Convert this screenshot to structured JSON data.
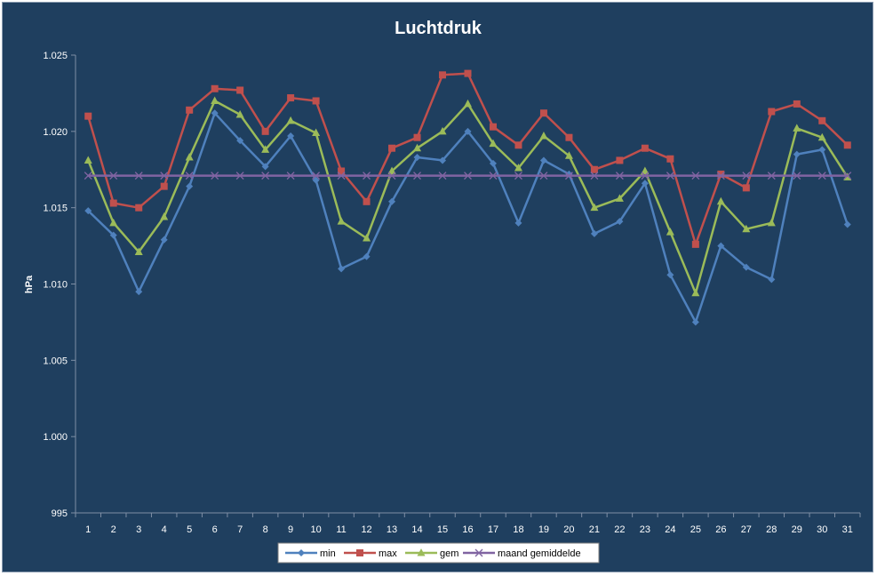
{
  "chart_data": {
    "type": "line",
    "title": "Luchtdruk",
    "xlabel": "",
    "ylabel": "hPa",
    "ylim": [
      995,
      1025
    ],
    "y_ticks": [
      "995",
      "1.000",
      "1.005",
      "1.010",
      "1.015",
      "1.020",
      "1.025"
    ],
    "y_tick_values": [
      995,
      1000,
      1005,
      1010,
      1015,
      1020,
      1025
    ],
    "categories": [
      "1",
      "2",
      "3",
      "4",
      "5",
      "6",
      "7",
      "8",
      "9",
      "10",
      "11",
      "12",
      "13",
      "14",
      "15",
      "16",
      "17",
      "18",
      "19",
      "20",
      "21",
      "22",
      "23",
      "24",
      "25",
      "26",
      "27",
      "28",
      "29",
      "30",
      "31"
    ],
    "grid": false,
    "legend_position": "bottom",
    "background": "#1f3f5f",
    "series": [
      {
        "name": "min",
        "color": "#4f81bd",
        "marker": "diamond",
        "values": [
          1014.8,
          1013.2,
          1009.5,
          1012.9,
          1016.4,
          1021.2,
          1019.4,
          1017.7,
          1019.7,
          1016.8,
          1011.0,
          1011.8,
          1015.4,
          1018.3,
          1018.1,
          1020.0,
          1017.9,
          1014.0,
          1018.1,
          1017.2,
          1013.3,
          1014.1,
          1016.6,
          1010.6,
          1007.5,
          1012.5,
          1011.1,
          1010.3,
          1018.5,
          1018.8,
          1013.9
        ]
      },
      {
        "name": "max",
        "color": "#c0504d",
        "marker": "square",
        "values": [
          1021.0,
          1015.3,
          1015.0,
          1016.4,
          1021.4,
          1022.8,
          1022.7,
          1020.0,
          1022.2,
          1022.0,
          1017.4,
          1015.4,
          1018.9,
          1019.6,
          1023.7,
          1023.8,
          1020.3,
          1019.1,
          1021.2,
          1019.6,
          1017.5,
          1018.1,
          1018.9,
          1018.2,
          1012.6,
          1017.2,
          1016.3,
          1021.3,
          1021.8,
          1020.7,
          1019.1
        ]
      },
      {
        "name": "gem",
        "color": "#9bbb59",
        "marker": "triangle",
        "values": [
          1018.1,
          1014.0,
          1012.1,
          1014.4,
          1018.3,
          1022.0,
          1021.1,
          1018.8,
          1020.7,
          1019.9,
          1014.1,
          1013.0,
          1017.4,
          1018.9,
          1020.0,
          1021.8,
          1019.2,
          1017.6,
          1019.7,
          1018.4,
          1015.0,
          1015.6,
          1017.4,
          1013.4,
          1009.4,
          1015.4,
          1013.6,
          1014.0,
          1020.2,
          1019.6,
          1017.0
        ]
      },
      {
        "name": "maand gemiddelde",
        "color": "#8064a2",
        "marker": "x",
        "values": [
          1017.1,
          1017.1,
          1017.1,
          1017.1,
          1017.1,
          1017.1,
          1017.1,
          1017.1,
          1017.1,
          1017.1,
          1017.1,
          1017.1,
          1017.1,
          1017.1,
          1017.1,
          1017.1,
          1017.1,
          1017.1,
          1017.1,
          1017.1,
          1017.1,
          1017.1,
          1017.1,
          1017.1,
          1017.1,
          1017.1,
          1017.1,
          1017.1,
          1017.1,
          1017.1,
          1017.1
        ]
      }
    ]
  }
}
